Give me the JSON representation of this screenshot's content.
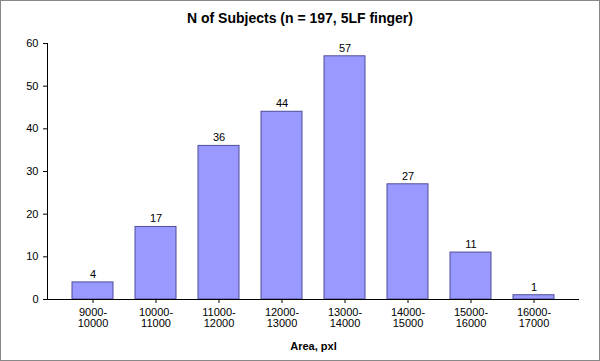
{
  "chart_data": {
    "type": "bar",
    "title": "N of Subjects (n = 197, 5LF finger)",
    "x_label": "Area, pxl",
    "categories": [
      "9000-10000",
      "10000-11000",
      "11000-12000",
      "12000-13000",
      "13000-14000",
      "14000-15000",
      "15000-16000",
      "16000-17000"
    ],
    "values": [
      4,
      17,
      36,
      44,
      57,
      27,
      11,
      1
    ],
    "color": "#9999ff",
    "ylim": [
      0,
      60
    ],
    "yticks": [
      0,
      10,
      20,
      30,
      40,
      50,
      60
    ],
    "grid": false,
    "data_labels": true
  }
}
